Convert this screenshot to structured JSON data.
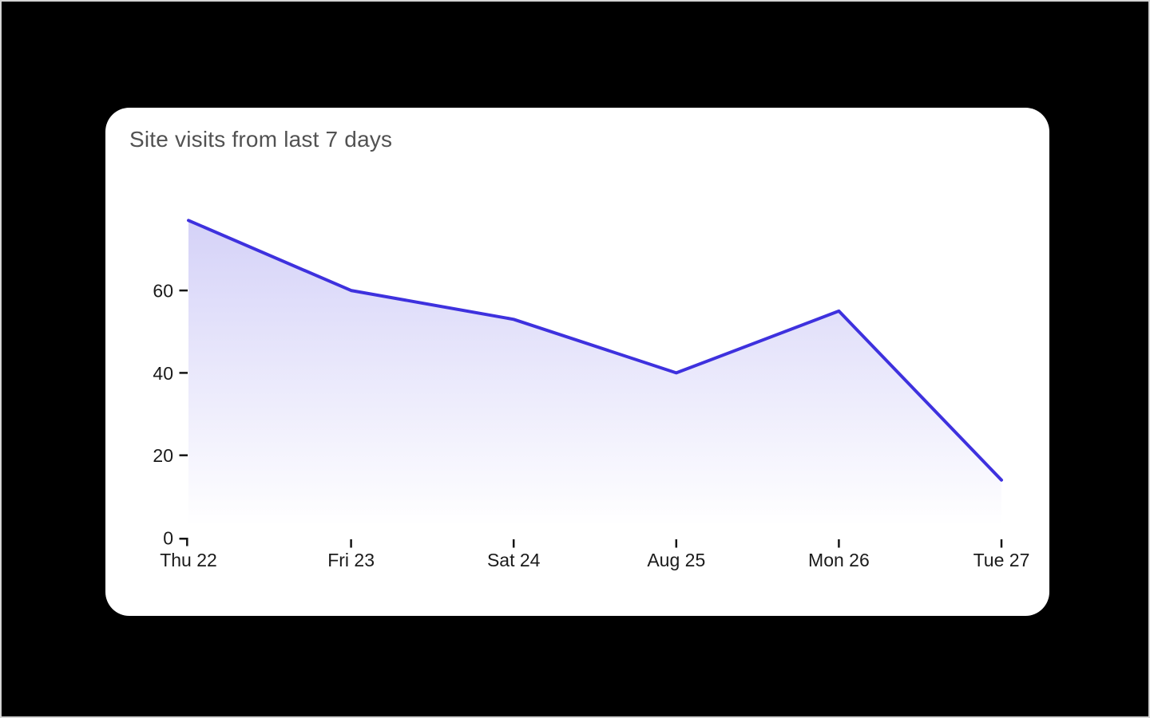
{
  "card": {
    "title": "Site visits from last 7 days"
  },
  "colors": {
    "line": "#3e31de",
    "area_top": "rgba(62,49,222,0.22)",
    "area_bottom": "rgba(62,49,222,0)",
    "axis_text": "#1a1a1a",
    "tick_stroke": "#141414",
    "title_text": "#525252",
    "card_bg": "#ffffff",
    "page_bg": "#000000"
  },
  "chart_data": {
    "type": "area",
    "title": "Site visits from last 7 days",
    "categories": [
      "Thu 22",
      "Fri 23",
      "Sat 24",
      "Aug 25",
      "Mon 26",
      "Tue 27"
    ],
    "values": [
      77,
      60,
      53,
      40,
      55,
      14
    ],
    "yticks": [
      0,
      20,
      40,
      60
    ],
    "ylim": [
      0,
      80
    ],
    "xlabel": "",
    "ylabel": "",
    "grid": false,
    "legend": false,
    "line_width": 4
  }
}
